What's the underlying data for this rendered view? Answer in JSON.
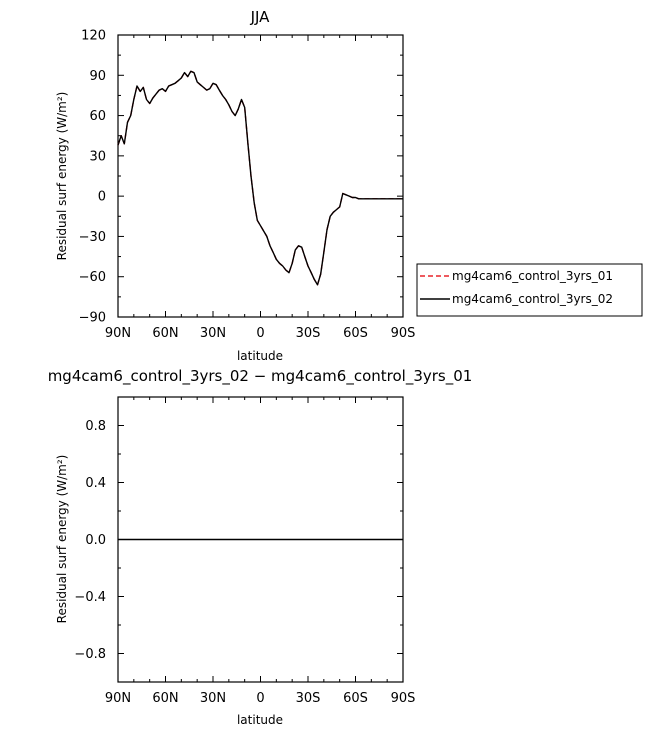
{
  "chart_data": [
    {
      "type": "line",
      "title": "JJA",
      "xlabel": "latitude",
      "ylabel": "Residual surf energy (W/m²)",
      "xlim": [
        90,
        -90
      ],
      "ylim": [
        -90,
        120
      ],
      "x_ticks": [
        90,
        60,
        30,
        0,
        -30,
        -60,
        -90
      ],
      "x_tick_labels": [
        "90N",
        "60N",
        "30N",
        "0",
        "30S",
        "60S",
        "90S"
      ],
      "y_ticks": [
        -90,
        -60,
        -30,
        0,
        30,
        60,
        90,
        120
      ],
      "y_tick_labels": [
        "−90",
        "−60",
        "−30",
        "0",
        "30",
        "60",
        "90",
        "120"
      ],
      "legend_position": "right",
      "x": [
        90,
        88,
        86,
        84,
        82,
        80,
        78,
        76,
        74,
        72,
        70,
        68,
        66,
        64,
        62,
        60,
        58,
        56,
        54,
        52,
        50,
        48,
        46,
        44,
        42,
        40,
        38,
        36,
        34,
        32,
        30,
        28,
        26,
        24,
        22,
        20,
        18,
        16,
        14,
        12,
        10,
        8,
        6,
        4,
        2,
        0,
        -2,
        -4,
        -6,
        -8,
        -10,
        -12,
        -14,
        -16,
        -18,
        -20,
        -22,
        -24,
        -26,
        -28,
        -30,
        -32,
        -34,
        -36,
        -38,
        -40,
        -42,
        -44,
        -46,
        -48,
        -50,
        -52,
        -54,
        -56,
        -58,
        -60,
        -62,
        -64,
        -66,
        -68,
        -70,
        -72,
        -74,
        -76,
        -78,
        -80,
        -82,
        -84,
        -86,
        -88,
        -90
      ],
      "series": [
        {
          "name": "mg4cam6_control_3yrs_01",
          "color": "#e8232a",
          "dash": "dashed",
          "values": [
            38,
            45,
            39,
            55,
            60,
            72,
            82,
            78,
            81,
            72,
            69,
            73,
            76,
            79,
            80,
            78,
            82,
            83,
            84,
            86,
            88,
            92,
            89,
            93,
            92,
            85,
            83,
            81,
            79,
            80,
            84,
            83,
            79,
            75,
            72,
            68,
            63,
            60,
            65,
            72,
            66,
            40,
            15,
            -5,
            -18,
            -22,
            -26,
            -30,
            -37,
            -42,
            -47,
            -50,
            -52,
            -55,
            -57,
            -50,
            -40,
            -37,
            -38,
            -45,
            -52,
            -57,
            -62,
            -66,
            -58,
            -42,
            -25,
            -15,
            -12,
            -10,
            -8,
            2,
            1,
            0,
            -1,
            -1,
            -2,
            -2,
            -2,
            -2,
            -2,
            -2,
            -2,
            -2,
            -2,
            -2,
            -2,
            -2,
            -2,
            -2,
            -2
          ]
        },
        {
          "name": "mg4cam6_control_3yrs_02",
          "color": "#000000",
          "dash": "solid",
          "values": [
            38,
            45,
            39,
            55,
            60,
            72,
            82,
            78,
            81,
            72,
            69,
            73,
            76,
            79,
            80,
            78,
            82,
            83,
            84,
            86,
            88,
            92,
            89,
            93,
            92,
            85,
            83,
            81,
            79,
            80,
            84,
            83,
            79,
            75,
            72,
            68,
            63,
            60,
            65,
            72,
            66,
            40,
            15,
            -5,
            -18,
            -22,
            -26,
            -30,
            -37,
            -42,
            -47,
            -50,
            -52,
            -55,
            -57,
            -50,
            -40,
            -37,
            -38,
            -45,
            -52,
            -57,
            -62,
            -66,
            -58,
            -42,
            -25,
            -15,
            -12,
            -10,
            -8,
            2,
            1,
            0,
            -1,
            -1,
            -2,
            -2,
            -2,
            -2,
            -2,
            -2,
            -2,
            -2,
            -2,
            -2,
            -2,
            -2,
            -2,
            -2,
            -2
          ]
        }
      ]
    },
    {
      "type": "line",
      "title": "mg4cam6_control_3yrs_02 − mg4cam6_control_3yrs_01",
      "xlabel": "latitude",
      "ylabel": "Residual surf energy (W/m²)",
      "xlim": [
        90,
        -90
      ],
      "ylim": [
        -1,
        1
      ],
      "x_ticks": [
        90,
        60,
        30,
        0,
        -30,
        -60,
        -90
      ],
      "x_tick_labels": [
        "90N",
        "60N",
        "30N",
        "0",
        "30S",
        "60S",
        "90S"
      ],
      "y_ticks": [
        -0.8,
        -0.4,
        0,
        0.4,
        0.8
      ],
      "y_tick_labels": [
        "−0.8",
        "−0.4",
        "0.0",
        "0.4",
        "0.8"
      ],
      "x": [
        90,
        -90
      ],
      "series": [
        {
          "color": "#000000",
          "dash": "solid",
          "values": [
            0,
            0
          ]
        }
      ]
    }
  ]
}
